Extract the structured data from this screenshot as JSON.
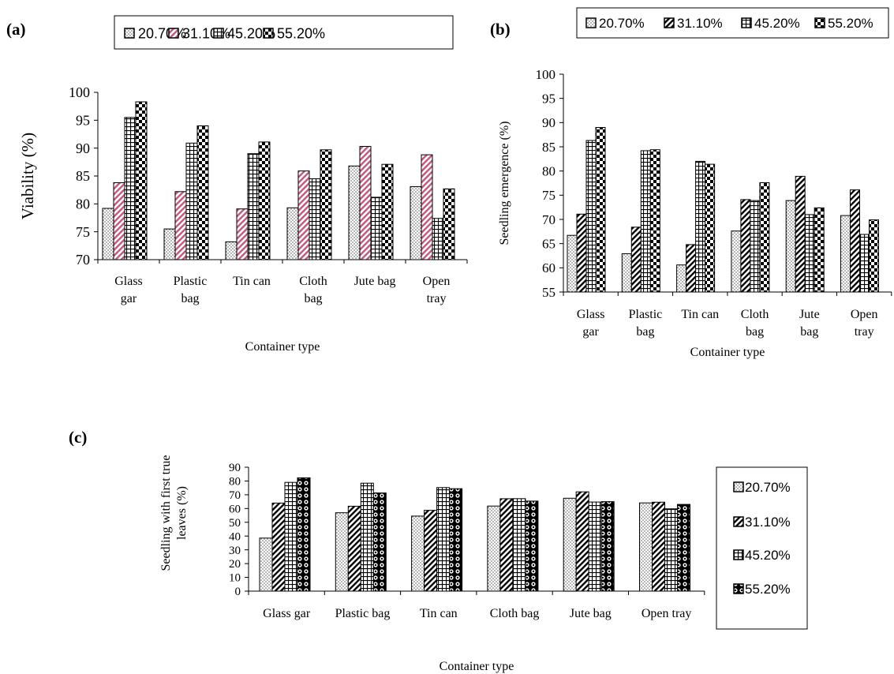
{
  "chart_data": [
    {
      "type": "bar",
      "panel_label": "(a)",
      "categories": [
        "Glass gar",
        "Plastic bag",
        "Tin can",
        "Cloth bag",
        "Jute bag",
        "Open tray"
      ],
      "tick_labels": [
        [
          "Glass",
          "gar"
        ],
        [
          "Plastic",
          "bag"
        ],
        [
          "Tin can"
        ],
        [
          "Cloth",
          "bag"
        ],
        [
          "Jute bag"
        ],
        [
          "Open",
          "tray"
        ]
      ],
      "series": [
        {
          "name": "20.70%",
          "values": [
            79.2,
            75.5,
            73.2,
            79.3,
            86.8,
            83.1
          ]
        },
        {
          "name": "31.10%",
          "values": [
            83.8,
            82.2,
            79.1,
            85.9,
            90.3,
            88.8
          ]
        },
        {
          "name": "45.20%",
          "values": [
            95.5,
            90.9,
            89.0,
            84.5,
            81.2,
            77.4
          ]
        },
        {
          "name": "55.20%",
          "values": [
            98.3,
            94.0,
            91.1,
            89.7,
            87.1,
            82.7
          ]
        }
      ],
      "title": "",
      "xlabel": "Container type",
      "ylabel": "Viability (%)",
      "ylim": [
        70,
        100
      ],
      "ytick_step": 5,
      "grid": false,
      "legend_position": "top",
      "legend_boxed": true
    },
    {
      "type": "bar",
      "panel_label": "(b)",
      "categories": [
        "Glass gar",
        "Plastic bag",
        "Tin can",
        "Cloth bag",
        "Jute bag",
        "Open tray"
      ],
      "tick_labels": [
        [
          "Glass",
          "gar"
        ],
        [
          "Plastic",
          "bag"
        ],
        [
          "Tin can"
        ],
        [
          "Cloth",
          "bag"
        ],
        [
          "Jute",
          "bag"
        ],
        [
          "Open",
          "tray"
        ]
      ],
      "series": [
        {
          "name": "20.70%",
          "values": [
            66.7,
            62.9,
            60.6,
            67.6,
            73.9,
            70.8
          ]
        },
        {
          "name": "31.10%",
          "values": [
            71.1,
            68.4,
            64.8,
            74.1,
            78.9,
            76.1
          ]
        },
        {
          "name": "45.20%",
          "values": [
            86.3,
            84.2,
            82.0,
            73.9,
            71.0,
            66.9
          ]
        },
        {
          "name": "55.20%",
          "values": [
            89.0,
            84.4,
            81.4,
            77.6,
            72.4,
            69.9
          ]
        }
      ],
      "title": "",
      "xlabel": "Container type",
      "ylabel": "Seedling emergence (%)",
      "ylim": [
        55,
        100
      ],
      "ytick_step": 5,
      "grid": false,
      "legend_position": "top",
      "legend_boxed": true
    },
    {
      "type": "bar",
      "panel_label": "(c)",
      "categories": [
        "Glass gar",
        "Plastic bag",
        "Tin can",
        "Cloth bag",
        "Jute bag",
        "Open tray"
      ],
      "tick_labels": [
        [
          "Glass gar"
        ],
        [
          "Plastic bag"
        ],
        [
          "Tin can"
        ],
        [
          "Cloth bag"
        ],
        [
          "Jute bag"
        ],
        [
          "Open tray"
        ]
      ],
      "series": [
        {
          "name": "20.70%",
          "values": [
            38.5,
            56.9,
            54.5,
            61.8,
            67.5,
            64.1
          ]
        },
        {
          "name": "31.10%",
          "values": [
            64.0,
            61.7,
            58.7,
            67.1,
            72.1,
            64.6
          ]
        },
        {
          "name": "45.20%",
          "values": [
            79.0,
            78.4,
            75.2,
            67.2,
            64.7,
            59.8
          ]
        },
        {
          "name": "55.20%",
          "values": [
            82.3,
            71.3,
            74.4,
            65.4,
            65.0,
            63.0
          ]
        }
      ],
      "title": "",
      "xlabel": "Container type",
      "ylabel_lines": [
        "Seedling with first true",
        "leaves (%)"
      ],
      "ylim": [
        0,
        90
      ],
      "ytick_step": 10,
      "grid": false,
      "legend_position": "right",
      "legend_boxed": true
    }
  ]
}
